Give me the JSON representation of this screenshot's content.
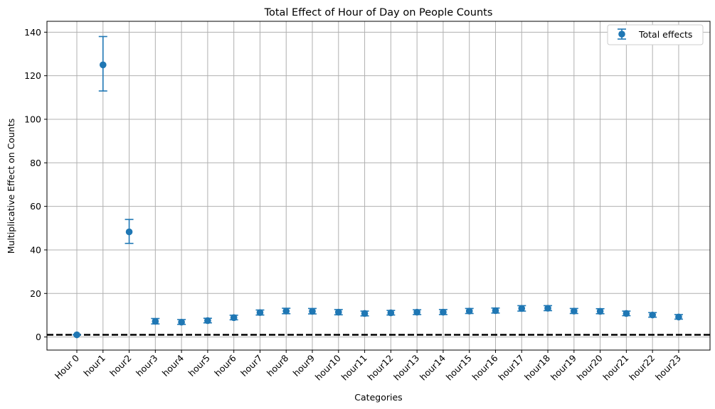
{
  "chart_data": {
    "type": "scatter",
    "title": "Total Effect of Hour of Day on People Counts",
    "xlabel": "Categories",
    "ylabel": "Multiplicative Effect on Counts",
    "categories": [
      "Hour 0",
      "hour1",
      "hour2",
      "hour3",
      "hour4",
      "hour5",
      "hour6",
      "hour7",
      "hour8",
      "hour9",
      "hour10",
      "hour11",
      "hour12",
      "hour13",
      "hour14",
      "hour15",
      "hour16",
      "hour17",
      "hour18",
      "hour19",
      "hour20",
      "hour21",
      "hour22",
      "hour23"
    ],
    "ylim": [
      -6,
      145
    ],
    "yticks": [
      0,
      20,
      40,
      60,
      80,
      100,
      120,
      140
    ],
    "grid": true,
    "legend_position": "top-right",
    "reference_line": {
      "y": 1,
      "style": "dashed",
      "color": "#000000"
    },
    "series": [
      {
        "name": "Total effects",
        "color": "#1f77b4",
        "values": [
          1,
          125,
          48.3,
          7.2,
          6.8,
          7.5,
          8.9,
          11.2,
          11.9,
          11.8,
          11.4,
          10.8,
          11.1,
          11.4,
          11.4,
          11.9,
          12.1,
          13.1,
          13.2,
          11.9,
          11.8,
          10.8,
          10.1,
          9.2
        ],
        "lower": [
          1,
          113,
          43,
          6,
          5.8,
          6.5,
          7.9,
          10.1,
          10.7,
          10.6,
          10.2,
          9.7,
          10.1,
          10.3,
          10.3,
          10.8,
          11,
          11.9,
          12.1,
          10.8,
          10.7,
          9.8,
          9.1,
          8.2
        ],
        "upper": [
          1,
          138,
          54,
          8.5,
          8,
          8.6,
          10,
          12.4,
          13.2,
          13.1,
          12.6,
          11.9,
          12.2,
          12.5,
          12.6,
          13.1,
          13.3,
          14.4,
          14.4,
          13.1,
          13,
          11.9,
          11.2,
          10.3
        ]
      }
    ]
  }
}
